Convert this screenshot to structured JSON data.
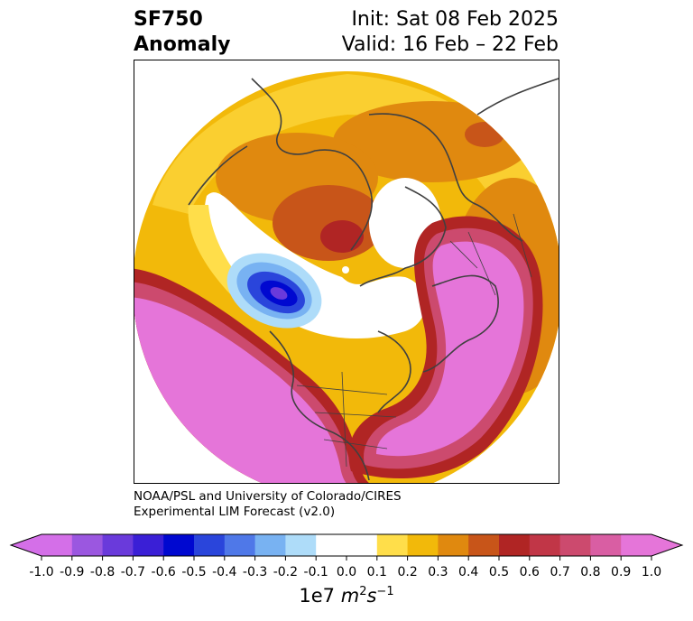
{
  "title": {
    "line1_left": "SF750",
    "line2_left": "Anomaly",
    "line1_right": "Init: Sat 08 Feb 2025",
    "line2_right": "Valid: 16 Feb – 22 Feb"
  },
  "credit": {
    "line1": "NOAA/PSL and University of Colorado/CIRES",
    "line2": "Experimental LIM Forecast (v2.0)"
  },
  "colorbar": {
    "unit_label": "1e7 m²s⁻¹",
    "ticks": [
      "-1.0",
      "-0.9",
      "-0.8",
      "-0.7",
      "-0.6",
      "-0.5",
      "-0.4",
      "-0.3",
      "-0.2",
      "-0.1",
      "0.0",
      "0.1",
      "0.2",
      "0.3",
      "0.4",
      "0.5",
      "0.6",
      "0.7",
      "0.8",
      "0.9",
      "1.0"
    ],
    "colors": [
      "#d46fe8",
      "#9b57e0",
      "#6a3adb",
      "#3a1fd6",
      "#0008d0",
      "#2a45db",
      "#4f78e8",
      "#78b2f2",
      "#aedcf9",
      "#ffffff",
      "#ffffff",
      "#ffde4a",
      "#f2b90a",
      "#e0890f",
      "#c85519",
      "#b02524",
      "#c13647",
      "#cc4a6e",
      "#d95ea3",
      "#e575d9"
    ],
    "under_color": "#d46fe8",
    "over_color": "#e575d9"
  }
}
